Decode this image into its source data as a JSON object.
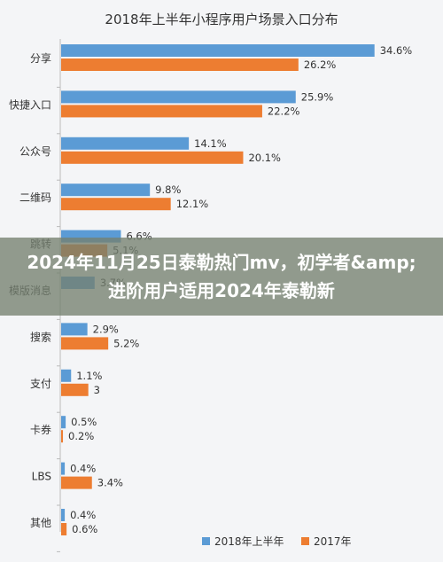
{
  "chart_data": {
    "type": "bar",
    "orientation": "horizontal",
    "title": "2018年上半年小程序用户场景入口分布",
    "categories": [
      "分享",
      "快捷入口",
      "公众号",
      "二维码",
      "跳转",
      "模版消息",
      "搜索",
      "支付",
      "卡券",
      "LBS",
      "其他"
    ],
    "series": [
      {
        "name": "2018年上半年",
        "color": "#5b9bd5",
        "values": [
          34.6,
          25.9,
          14.1,
          9.8,
          6.6,
          3.7,
          2.9,
          1.1,
          0.5,
          0.4,
          0.4
        ],
        "labels": [
          "34.6%",
          "25.9%",
          "14.1%",
          "9.8%",
          "6.6%",
          "3.7%",
          "2.9%",
          "1.1%",
          "0.5%",
          "0.4%",
          "0.4%"
        ]
      },
      {
        "name": "2017年",
        "color": "#ed7d31",
        "values": [
          26.2,
          22.2,
          20.1,
          12.1,
          5.1,
          null,
          5.2,
          3,
          0.2,
          3.4,
          0.6
        ],
        "labels": [
          "26.2%",
          "22.2%",
          "20.1%",
          "12.1%",
          "5.1%",
          "",
          "5.2%",
          "3",
          "0.2%",
          "3.4%",
          "0.6%"
        ]
      }
    ],
    "legend_position": "bottom",
    "xlim": [
      0,
      36
    ],
    "grid": false
  },
  "overlay": {
    "text": "2024年11月25日泰勒热门mv，初学者&amp;进阶用户适用2024年泰勒新"
  }
}
